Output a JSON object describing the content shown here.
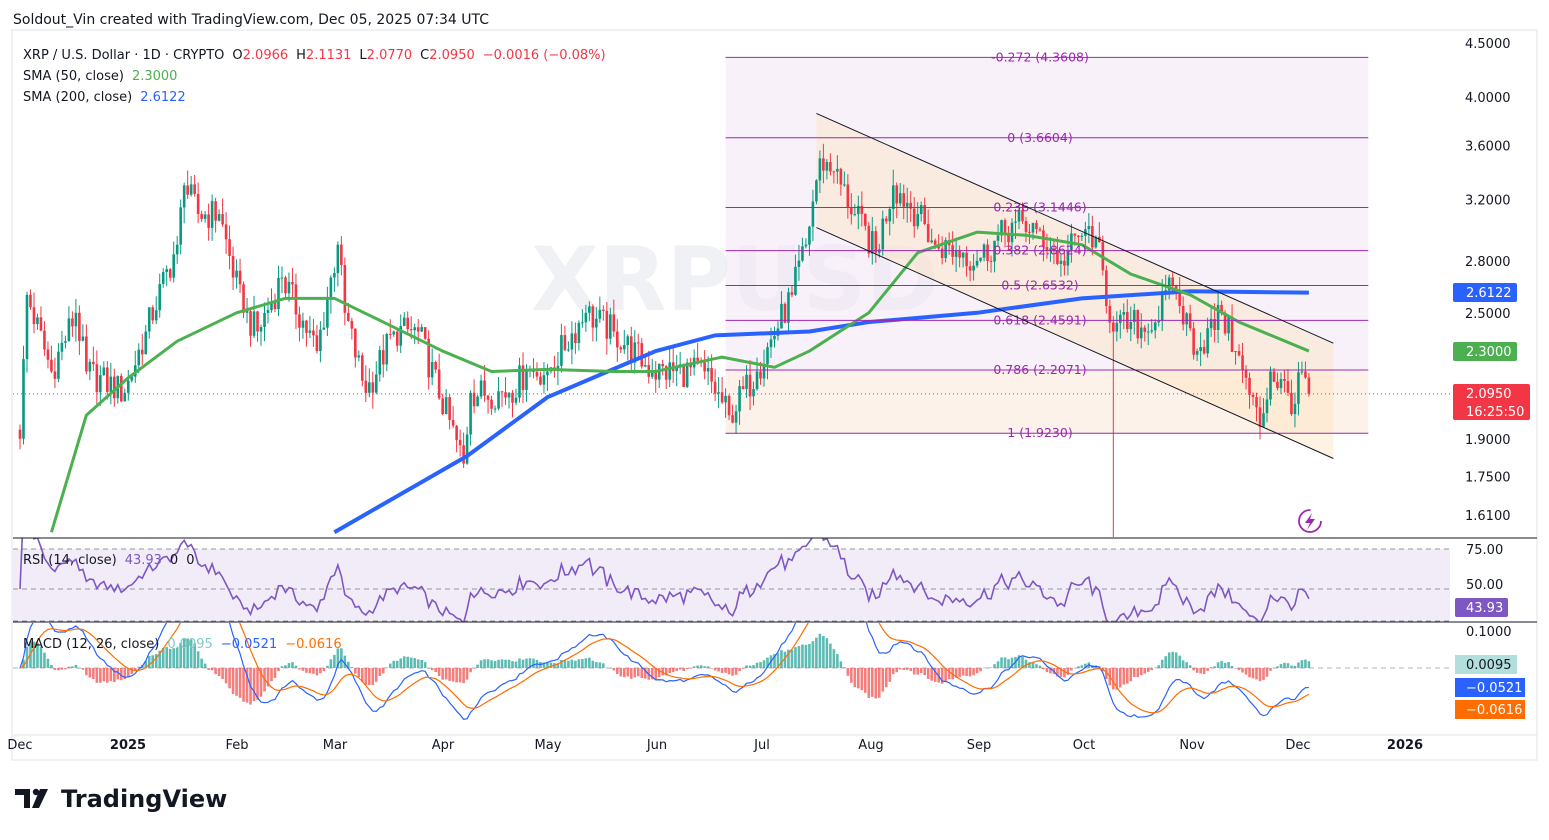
{
  "attribution": "Soldout_Vin created with TradingView.com, Dec 05, 2025 07:34 UTC",
  "legend": {
    "symbol": "XRP / U.S. Dollar · 1D · CRYPTO",
    "o_label": "O",
    "o": "2.0966",
    "h_label": "H",
    "h": "2.1131",
    "l_label": "L",
    "l": "2.0770",
    "c_label": "C",
    "c": "2.0950",
    "change": "−0.0016 (−0.08%)",
    "sma50_label": "SMA (50, close)",
    "sma50_value": "2.3000",
    "sma200_label": "SMA (200, close)",
    "sma200_value": "2.6122",
    "rsi_label": "RSI (14, close)",
    "rsi_value": "43.93",
    "rsi_extra1": "0",
    "rsi_extra2": "0",
    "macd_label": "MACD (12, 26, close)",
    "macd_hist": "0.0095",
    "macd_line": "−0.0521",
    "macd_signal": "−0.0616"
  },
  "watermark": "XRPUSD",
  "price_axis": {
    "ticks": [
      "4.5000",
      "4.0000",
      "3.6000",
      "3.2000",
      "2.8000",
      "2.5000",
      "1.9000",
      "1.7500",
      "1.6100"
    ],
    "sma200_tag": "2.6122",
    "sma50_tag": "2.3000",
    "last_price_tag": "2.0950",
    "countdown": "16:25:50"
  },
  "rsi_axis": {
    "ticks": [
      "75.00",
      "50.00"
    ],
    "value_tag": "43.93"
  },
  "macd_axis": {
    "ticks": [
      "0.1000"
    ],
    "hist_tag": "0.0095",
    "macd_tag": "−0.0521",
    "signal_tag": "−0.0616"
  },
  "time_axis": [
    "Dec",
    "2025",
    "Feb",
    "Mar",
    "Apr",
    "May",
    "Jun",
    "Jul",
    "Aug",
    "Sep",
    "Oct",
    "Nov",
    "Dec",
    "2026"
  ],
  "footer": {
    "logo_text": "TradingView"
  },
  "colors": {
    "up": "#089981",
    "down": "#f23645",
    "sma50": "#4caf50",
    "sma200": "#2962ff",
    "fib": "#9c27b0",
    "rsi": "#7e57c2",
    "macd": "#2962ff",
    "signal": "#ff6d00",
    "hist_pos": "#26a69a",
    "hist_neg": "#ef5350"
  },
  "chart_data": {
    "type": "candlestick",
    "title": "XRP / U.S. Dollar · 1D · CRYPTO",
    "y_scale": "log",
    "ylim": [
      1.55,
      4.6
    ],
    "xlim": [
      "2024-11-30",
      "2026-01-15"
    ],
    "grid": false,
    "approx_closes": [
      [
        "2024-12-01",
        1.9
      ],
      [
        "2024-12-03",
        2.6
      ],
      [
        "2024-12-10",
        2.2
      ],
      [
        "2024-12-17",
        2.5
      ],
      [
        "2024-12-20",
        2.2
      ],
      [
        "2024-12-31",
        2.1
      ],
      [
        "2025-01-06",
        2.4
      ],
      [
        "2025-01-15",
        2.9
      ],
      [
        "2025-01-17",
        3.3
      ],
      [
        "2025-01-21",
        3.1
      ],
      [
        "2025-01-27",
        3.1
      ],
      [
        "2025-02-03",
        2.5
      ],
      [
        "2025-02-07",
        2.4
      ],
      [
        "2025-02-14",
        2.7
      ],
      [
        "2025-02-24",
        2.3
      ],
      [
        "2025-03-02",
        2.9
      ],
      [
        "2025-03-04",
        2.5
      ],
      [
        "2025-03-10",
        2.1
      ],
      [
        "2025-03-18",
        2.4
      ],
      [
        "2025-03-25",
        2.4
      ],
      [
        "2025-04-07",
        1.8
      ],
      [
        "2025-04-09",
        2.1
      ],
      [
        "2025-04-20",
        2.1
      ],
      [
        "2025-04-25",
        2.2
      ],
      [
        "2025-05-01",
        2.2
      ],
      [
        "2025-05-12",
        2.5
      ],
      [
        "2025-05-20",
        2.4
      ],
      [
        "2025-05-31",
        2.2
      ],
      [
        "2025-06-15",
        2.2
      ],
      [
        "2025-06-22",
        2.0
      ],
      [
        "2025-06-30",
        2.2
      ],
      [
        "2025-07-10",
        2.6
      ],
      [
        "2025-07-14",
        2.9
      ],
      [
        "2025-07-18",
        3.5
      ],
      [
        "2025-07-22",
        3.4
      ],
      [
        "2025-07-28",
        3.1
      ],
      [
        "2025-08-03",
        2.85
      ],
      [
        "2025-08-08",
        3.3
      ],
      [
        "2025-08-15",
        3.1
      ],
      [
        "2025-08-20",
        2.9
      ],
      [
        "2025-08-28",
        2.85
      ],
      [
        "2025-09-01",
        2.8
      ],
      [
        "2025-09-12",
        3.05
      ],
      [
        "2025-09-18",
        3.0
      ],
      [
        "2025-09-25",
        2.8
      ],
      [
        "2025-10-02",
        3.0
      ],
      [
        "2025-10-05",
        2.95
      ],
      [
        "2025-10-10",
        2.4
      ],
      [
        "2025-10-15",
        2.45
      ],
      [
        "2025-10-20",
        2.4
      ],
      [
        "2025-10-27",
        2.65
      ],
      [
        "2025-11-03",
        2.3
      ],
      [
        "2025-11-10",
        2.5
      ],
      [
        "2025-11-14",
        2.3
      ],
      [
        "2025-11-21",
        1.95
      ],
      [
        "2025-11-24",
        2.2
      ],
      [
        "2025-12-01",
        2.05
      ],
      [
        "2025-12-03",
        2.2
      ],
      [
        "2025-12-05",
        2.095
      ]
    ],
    "sma50": [
      [
        "2024-12-10",
        1.55
      ],
      [
        "2024-12-20",
        2.0
      ],
      [
        "2025-01-01",
        2.17
      ],
      [
        "2025-01-15",
        2.35
      ],
      [
        "2025-02-01",
        2.5
      ],
      [
        "2025-02-15",
        2.58
      ],
      [
        "2025-03-01",
        2.58
      ],
      [
        "2025-03-15",
        2.45
      ],
      [
        "2025-04-01",
        2.3
      ],
      [
        "2025-04-15",
        2.2
      ],
      [
        "2025-05-01",
        2.21
      ],
      [
        "2025-05-20",
        2.2
      ],
      [
        "2025-06-01",
        2.2
      ],
      [
        "2025-06-20",
        2.27
      ],
      [
        "2025-07-05",
        2.22
      ],
      [
        "2025-07-15",
        2.3
      ],
      [
        "2025-08-01",
        2.5
      ],
      [
        "2025-08-15",
        2.85
      ],
      [
        "2025-09-01",
        2.98
      ],
      [
        "2025-09-15",
        2.96
      ],
      [
        "2025-10-01",
        2.9
      ],
      [
        "2025-10-15",
        2.72
      ],
      [
        "2025-11-01",
        2.6
      ],
      [
        "2025-11-15",
        2.45
      ],
      [
        "2025-12-05",
        2.3
      ]
    ],
    "sma200": [
      [
        "2025-03-01",
        1.55
      ],
      [
        "2025-04-08",
        1.83
      ],
      [
        "2025-05-01",
        2.08
      ],
      [
        "2025-06-01",
        2.3
      ],
      [
        "2025-06-18",
        2.38
      ],
      [
        "2025-07-15",
        2.4
      ],
      [
        "2025-08-01",
        2.45
      ],
      [
        "2025-09-01",
        2.5
      ],
      [
        "2025-10-01",
        2.58
      ],
      [
        "2025-11-01",
        2.62
      ],
      [
        "2025-12-05",
        2.6122
      ]
    ],
    "fib": {
      "from": "2025-06-21",
      "to": "2025-12-22",
      "levels": [
        {
          "ratio": "-0.272",
          "price": "4.3608"
        },
        {
          "ratio": "0",
          "price": "3.6604"
        },
        {
          "ratio": "0.236",
          "price": "3.1446"
        },
        {
          "ratio": "0.382",
          "price": "2.8624"
        },
        {
          "ratio": "0.5",
          "price": "2.6532"
        },
        {
          "ratio": "0.618",
          "price": "2.4591"
        },
        {
          "ratio": "0.786",
          "price": "2.2071"
        },
        {
          "ratio": "1",
          "price": "1.9230"
        }
      ]
    },
    "channel": {
      "upper": [
        [
          "2025-07-17",
          3.86
        ],
        [
          "2025-12-12",
          2.34
        ]
      ],
      "lower": [
        [
          "2025-07-17",
          3.01
        ],
        [
          "2025-12-12",
          1.82
        ]
      ]
    },
    "rsi_levels": [
      75,
      50,
      30
    ],
    "last_price": 2.095
  }
}
